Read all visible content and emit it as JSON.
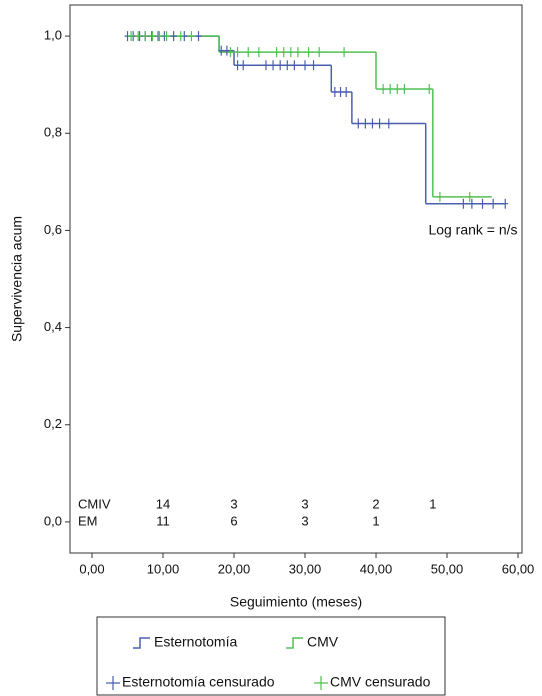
{
  "chart_data": {
    "type": "km",
    "xlabel": "Seguimiento (meses)",
    "ylabel": "Supervivencia acum",
    "xlim": [
      -3.1,
      60.56
    ],
    "ylim": [
      -0.064,
      1.064
    ],
    "xticks": [
      {
        "value": 0,
        "label": "0,00"
      },
      {
        "value": 10,
        "label": "10,00"
      },
      {
        "value": 20,
        "label": "20,00"
      },
      {
        "value": 30,
        "label": "30,00"
      },
      {
        "value": 40,
        "label": "40,00"
      },
      {
        "value": 50,
        "label": "50,00"
      },
      {
        "value": 60,
        "label": "60,00"
      }
    ],
    "yticks": [
      {
        "value": 0,
        "label": "0,0"
      },
      {
        "value": 0.2,
        "label": "0,2"
      },
      {
        "value": 0.4,
        "label": "0,4"
      },
      {
        "value": 0.6,
        "label": "0,6"
      },
      {
        "value": 0.8,
        "label": "0,8"
      },
      {
        "value": 1,
        "label": "1,0"
      }
    ],
    "annotation": "Log rank = n/s",
    "series": [
      {
        "name": "Esternotomía",
        "color": "#4a5fae",
        "kind": "step",
        "x": [
          4.9,
          17.9,
          20,
          33.7,
          36.6,
          47,
          58.2
        ],
        "values": [
          1,
          0.97,
          0.94,
          0.885,
          0.82,
          0.655,
          0.655
        ]
      },
      {
        "name": "CMV",
        "color": "#52c152",
        "kind": "step",
        "x": [
          4.9,
          17.9,
          40,
          48,
          56.3
        ],
        "values": [
          1,
          0.967,
          0.891,
          0.669,
          0.669
        ]
      },
      {
        "name": "Esternotomía censurado",
        "color": "#4a5fae",
        "kind": "censored",
        "x": [
          5.0,
          5.8,
          6.7,
          7.5,
          8.4,
          9.3,
          10.2,
          11.5,
          13.0,
          15.0,
          18.2,
          19.0,
          20.5,
          21.3,
          24.5,
          25.5,
          26.5,
          27.5,
          28.5,
          30,
          31.2,
          34.2,
          35,
          35.8,
          37.5,
          38.5,
          39.5,
          40.5,
          41.8,
          52.3,
          53.5,
          55,
          56.5,
          58.2
        ],
        "values": [
          1,
          1,
          1,
          1,
          1,
          1,
          1,
          1,
          1,
          1,
          0.97,
          0.97,
          0.94,
          0.94,
          0.94,
          0.94,
          0.94,
          0.94,
          0.94,
          0.94,
          0.94,
          0.885,
          0.885,
          0.885,
          0.82,
          0.82,
          0.82,
          0.82,
          0.82,
          0.655,
          0.655,
          0.655,
          0.655,
          0.655
        ]
      },
      {
        "name": "CMV censurado",
        "color": "#52c152",
        "kind": "censored",
        "x": [
          5.5,
          6.5,
          7.5,
          8.5,
          9.5,
          10.5,
          12.5,
          14,
          19.5,
          20.5,
          22,
          23.5,
          26,
          27,
          28,
          29,
          30.5,
          32,
          35.5,
          41,
          42,
          43,
          44,
          47.5,
          49,
          53.2
        ],
        "values": [
          1,
          1,
          1,
          1,
          1,
          1,
          1,
          1,
          0.967,
          0.967,
          0.967,
          0.967,
          0.967,
          0.967,
          0.967,
          0.967,
          0.967,
          0.967,
          0.967,
          0.891,
          0.891,
          0.891,
          0.891,
          0.891,
          0.669,
          0.669
        ]
      }
    ],
    "at_risk": {
      "x": [
        10,
        20,
        30,
        40,
        48
      ],
      "rows": [
        {
          "name": "CMIV",
          "values": [
            14,
            3,
            3,
            2,
            1
          ]
        },
        {
          "name": "EM",
          "values": [
            11,
            6,
            3,
            1,
            null
          ]
        }
      ]
    }
  }
}
